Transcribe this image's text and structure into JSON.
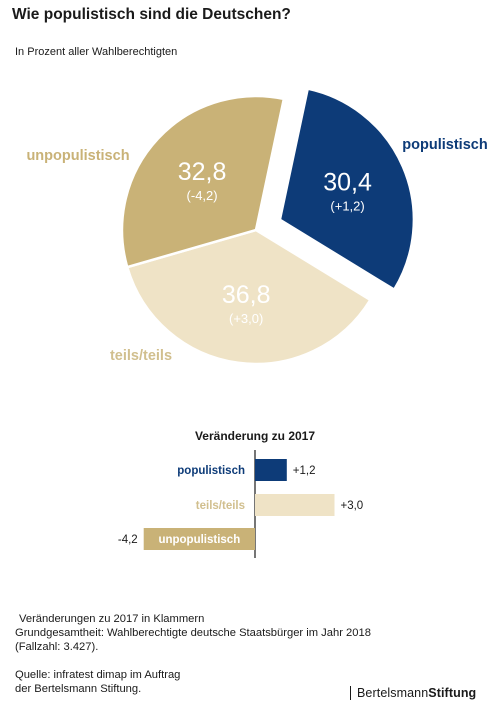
{
  "title": "Wie populistisch sind die Deutschen?",
  "subtitle": "In Prozent aller Wahlberechtigten",
  "chart_data": [
    {
      "type": "pie",
      "slices": [
        {
          "label": "populistisch",
          "value": 30.4,
          "value_text": "30,4",
          "change_text": "(+1,2)",
          "color": "#0d3b78",
          "exploded": true
        },
        {
          "label": "teils/teils",
          "value": 36.8,
          "value_text": "36,8",
          "change_text": "(+3,0)",
          "color": "#efe3c6"
        },
        {
          "label": "unpopulistisch",
          "value": 32.8,
          "value_text": "32,8",
          "change_text": "(-4,2)",
          "color": "#c9b277"
        }
      ]
    },
    {
      "type": "bar",
      "title": "Veränderung zu 2017",
      "orientation": "horizontal",
      "categories": [
        "populistisch",
        "teils/teils",
        "unpopulistisch"
      ],
      "values": [
        1.2,
        3.0,
        -4.2
      ],
      "value_labels": [
        "+1,2",
        "+3,0",
        "-4,2"
      ],
      "colors": [
        "#0d3b78",
        "#efe3c6",
        "#c9b277"
      ]
    }
  ],
  "notes": {
    "line1": "Veränderungen zu 2017 in Klammern",
    "line2": "Grundgesamtheit: Wahlberechtigte deutsche Staatsbürger im Jahr 2018",
    "line3": "(Fallzahl: 3.427).",
    "line4": "Quelle: infratest dimap im Auftrag",
    "line5": "der Bertelsmann Stiftung."
  },
  "brand": {
    "part1": "Bertelsmann",
    "part2": "Stiftung"
  }
}
